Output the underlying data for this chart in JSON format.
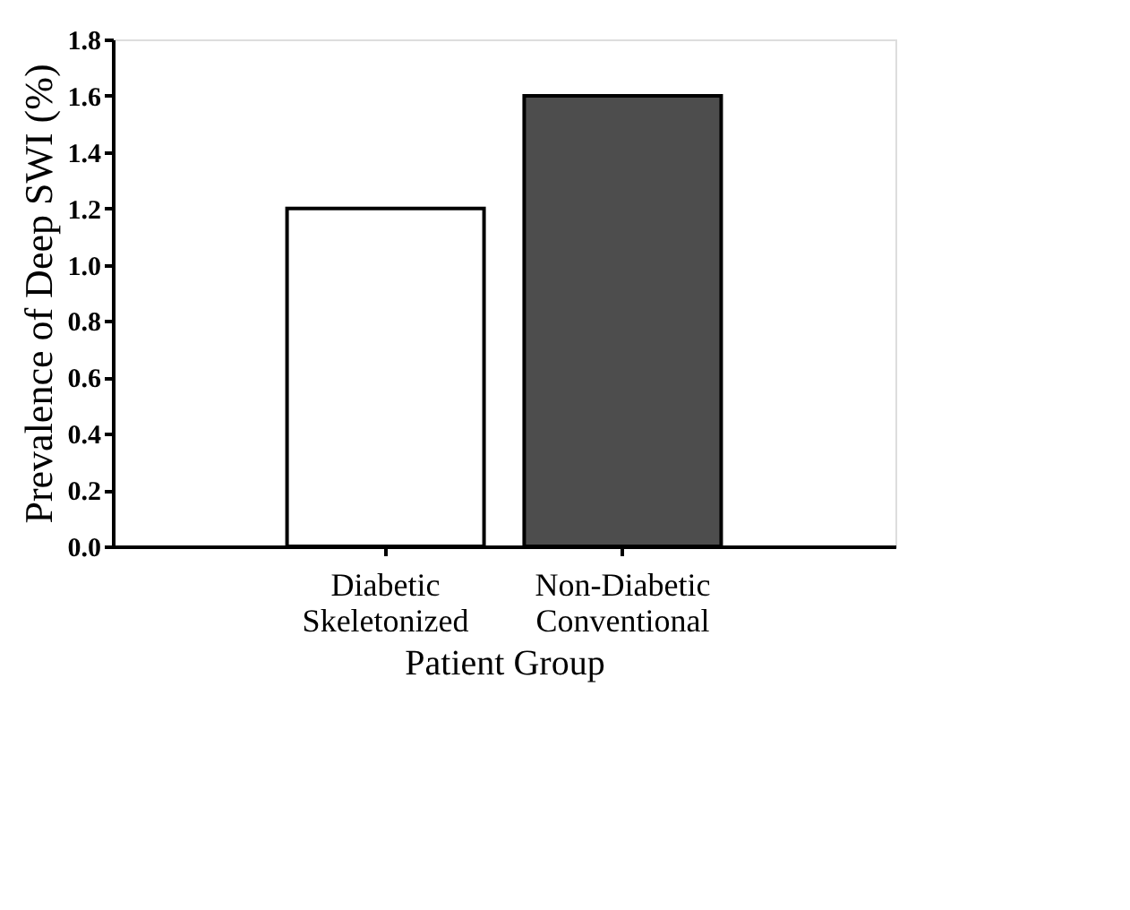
{
  "chart_data": {
    "type": "bar",
    "xlabel": "Patient Group",
    "ylabel": "Prevalence of Deep SWI (%)",
    "categories": [
      "Diabetic Skeletonized",
      "Non-Diabetic Conventional"
    ],
    "values": [
      1.2,
      1.6
    ],
    "colors": [
      "#ffffff",
      "#4d4d4d"
    ],
    "ylim": [
      0,
      1.8
    ],
    "yticks": [
      {
        "value": 0,
        "label": "0.0"
      },
      {
        "value": 0.2,
        "label": "0.2"
      },
      {
        "value": 0.4,
        "label": "0.4"
      },
      {
        "value": 0.6,
        "label": "0.6"
      },
      {
        "value": 0.8,
        "label": "0.8"
      },
      {
        "value": 1.0,
        "label": "1.0"
      },
      {
        "value": 1.2,
        "label": "1.2"
      },
      {
        "value": 1.4,
        "label": "1.4"
      },
      {
        "value": 1.6,
        "label": "1.6"
      },
      {
        "value": 1.8,
        "label": "1.8"
      }
    ],
    "grid": false
  }
}
